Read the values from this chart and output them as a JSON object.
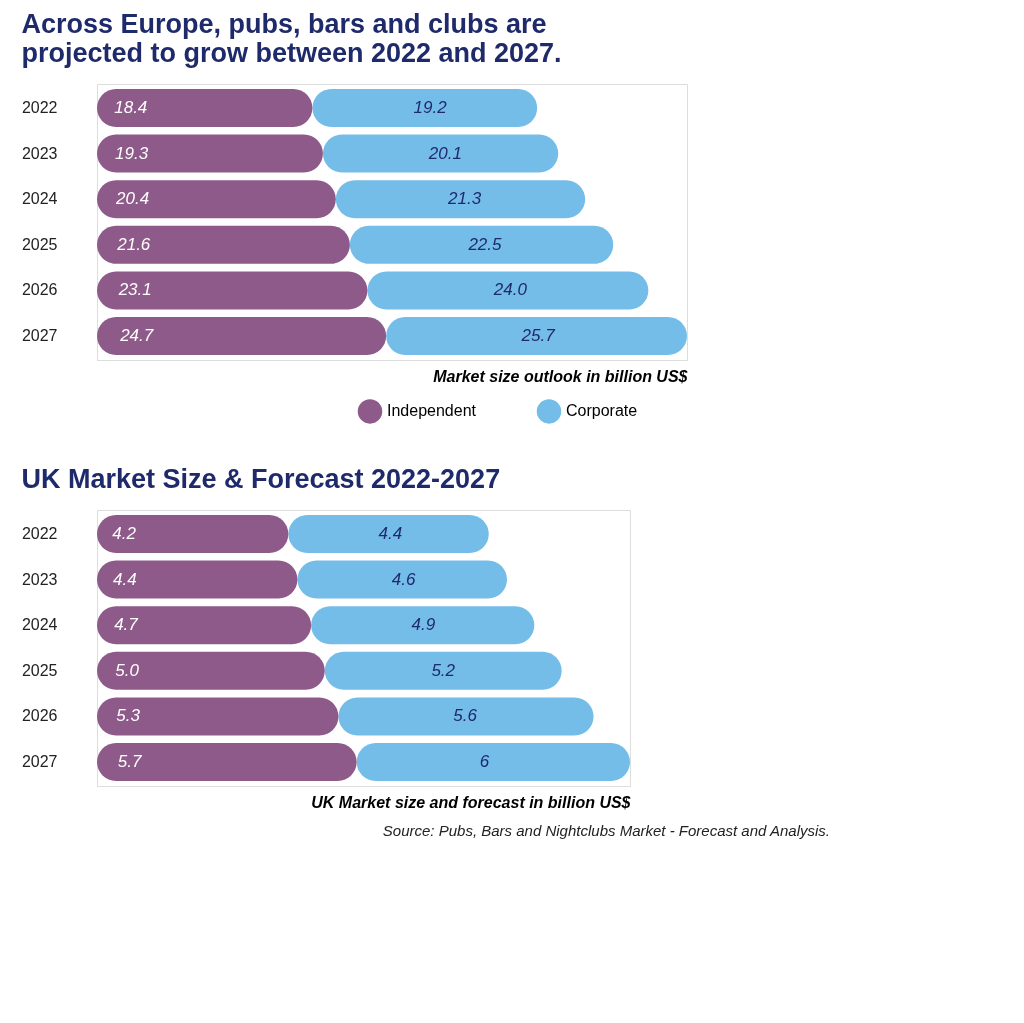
{
  "chart_data": [
    {
      "type": "bar",
      "orientation": "horizontal",
      "stacked": true,
      "grid": false,
      "legend": "bottom right",
      "tick_labels": "y",
      "title": "Across Europe, pubs, bars and clubs are projected to grow between 2022 and 2027.",
      "xlabel": "Market size outlook in billion US$",
      "categories": [
        "2022",
        "2023",
        "2024",
        "2025",
        "2026",
        "2027"
      ],
      "series": [
        {
          "name": "Independent",
          "color": "#8e5a8a",
          "values": [
            18.4,
            19.3,
            20.4,
            21.6,
            23.1,
            24.7
          ],
          "value_labels": [
            "18.4",
            "19.3",
            "20.4",
            "21.6",
            "23.1",
            "24.7"
          ]
        },
        {
          "name": "Corporate",
          "color": "#74bde9",
          "values": [
            19.2,
            20.1,
            21.3,
            22.5,
            24.0,
            25.7
          ],
          "value_labels": [
            "19.2",
            "20.1",
            "21.3",
            "22.5",
            "24.0",
            "25.7"
          ]
        }
      ]
    },
    {
      "type": "bar",
      "orientation": "horizontal",
      "stacked": true,
      "grid": false,
      "tick_labels": "y",
      "title": "UK Market Size & Forecast 2022-2027",
      "xlabel": "UK Market size and forecast in billion US$",
      "annotations": [
        "Source: Pubs, Bars and Nightclubs Market - Forecast and Analysis."
      ],
      "categories": [
        "2022",
        "2023",
        "2024",
        "2025",
        "2026",
        "2027"
      ],
      "series": [
        {
          "color": "#8e5a8a",
          "values": [
            4.2,
            4.4,
            4.7,
            5.0,
            5.3,
            5.7
          ],
          "value_labels": [
            "4.2",
            "4.4",
            "4.7",
            "5.0",
            "5.3",
            "5.7"
          ]
        },
        {
          "color": "#74bde9",
          "values": [
            4.4,
            4.6,
            4.9,
            5.2,
            5.6,
            6
          ],
          "value_labels": [
            "4.4",
            "4.6",
            "4.9",
            "5.2",
            "5.6",
            "6"
          ]
        }
      ]
    }
  ]
}
